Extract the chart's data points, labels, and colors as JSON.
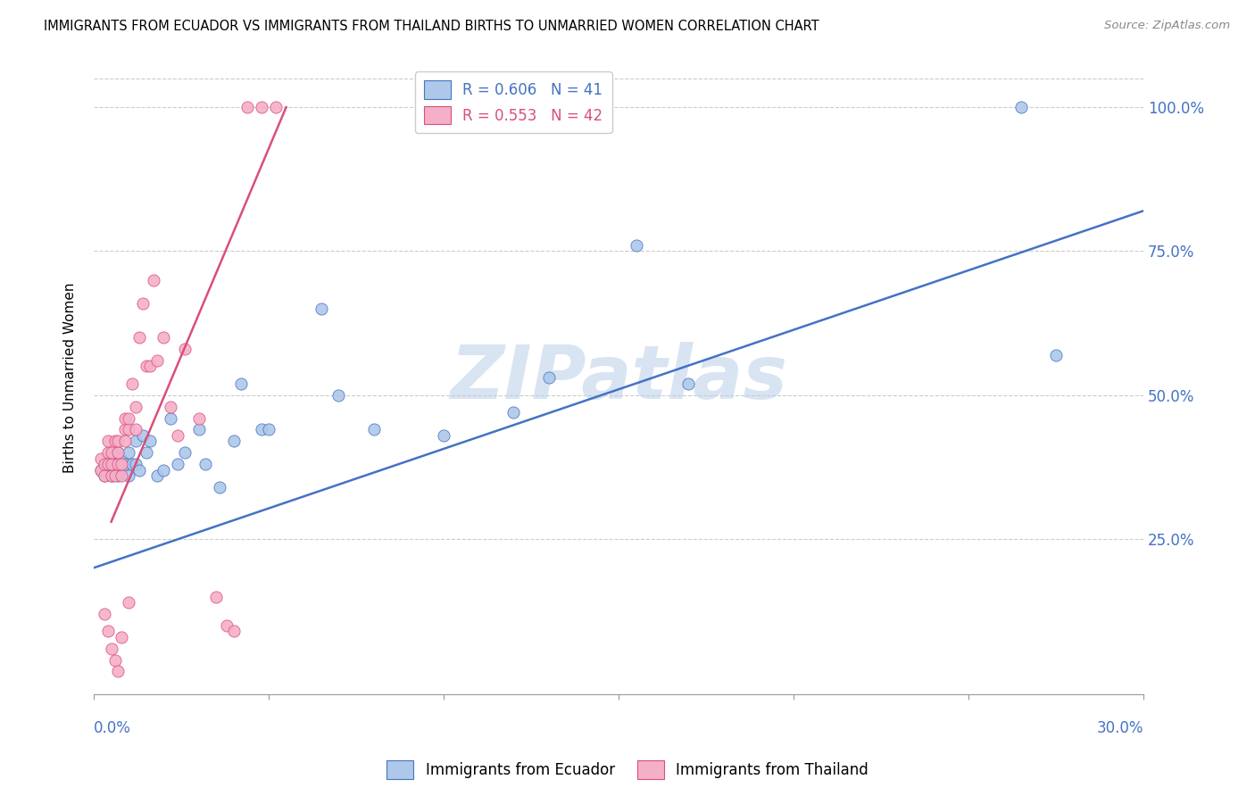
{
  "title": "IMMIGRANTS FROM ECUADOR VS IMMIGRANTS FROM THAILAND BIRTHS TO UNMARRIED WOMEN CORRELATION CHART",
  "source": "Source: ZipAtlas.com",
  "ylabel": "Births to Unmarried Women",
  "ytick_values": [
    0.25,
    0.5,
    0.75,
    1.0
  ],
  "ytick_labels": [
    "25.0%",
    "50.0%",
    "75.0%",
    "100.0%"
  ],
  "xlim": [
    0.0,
    0.3
  ],
  "ylim": [
    -0.02,
    1.08
  ],
  "watermark": "ZIPatlas",
  "legend1_r": "0.606",
  "legend1_n": "41",
  "legend2_r": "0.553",
  "legend2_n": "42",
  "color_ecuador": "#adc8e8",
  "color_thailand": "#f5afc8",
  "color_line_ecuador": "#4472c4",
  "color_line_thailand": "#d94f7a",
  "ecuador_trend_x": [
    0.0,
    0.3
  ],
  "ecuador_trend_y": [
    0.2,
    0.82
  ],
  "thailand_trend_x": [
    0.005,
    0.055
  ],
  "thailand_trend_y": [
    0.28,
    1.0
  ],
  "ecuador_x": [
    0.002,
    0.003,
    0.004,
    0.005,
    0.006,
    0.006,
    0.007,
    0.007,
    0.008,
    0.009,
    0.01,
    0.01,
    0.011,
    0.012,
    0.012,
    0.013,
    0.014,
    0.015,
    0.016,
    0.018,
    0.02,
    0.022,
    0.024,
    0.026,
    0.03,
    0.032,
    0.036,
    0.04,
    0.042,
    0.048,
    0.05,
    0.065,
    0.07,
    0.08,
    0.1,
    0.12,
    0.13,
    0.155,
    0.17,
    0.265,
    0.275
  ],
  "ecuador_y": [
    0.37,
    0.36,
    0.38,
    0.36,
    0.37,
    0.38,
    0.36,
    0.4,
    0.39,
    0.38,
    0.36,
    0.4,
    0.38,
    0.38,
    0.42,
    0.37,
    0.43,
    0.4,
    0.42,
    0.36,
    0.37,
    0.46,
    0.38,
    0.4,
    0.44,
    0.38,
    0.34,
    0.42,
    0.52,
    0.44,
    0.44,
    0.65,
    0.5,
    0.44,
    0.43,
    0.47,
    0.53,
    0.76,
    0.52,
    1.0,
    0.57
  ],
  "thailand_x": [
    0.002,
    0.002,
    0.003,
    0.003,
    0.004,
    0.004,
    0.004,
    0.005,
    0.005,
    0.005,
    0.006,
    0.006,
    0.007,
    0.007,
    0.007,
    0.008,
    0.008,
    0.009,
    0.009,
    0.009,
    0.01,
    0.01,
    0.011,
    0.012,
    0.012,
    0.013,
    0.014,
    0.015,
    0.016,
    0.017,
    0.018,
    0.02,
    0.022,
    0.024,
    0.026,
    0.03,
    0.035,
    0.038,
    0.04,
    0.044,
    0.048,
    0.052
  ],
  "thailand_y": [
    0.37,
    0.39,
    0.36,
    0.38,
    0.4,
    0.38,
    0.42,
    0.36,
    0.38,
    0.4,
    0.42,
    0.36,
    0.38,
    0.4,
    0.42,
    0.36,
    0.38,
    0.44,
    0.42,
    0.46,
    0.44,
    0.46,
    0.52,
    0.44,
    0.48,
    0.6,
    0.66,
    0.55,
    0.55,
    0.7,
    0.56,
    0.6,
    0.48,
    0.43,
    0.58,
    0.46,
    0.15,
    0.1,
    0.09,
    1.0,
    1.0,
    1.0
  ],
  "thailand_outlier_x": [
    0.003,
    0.004,
    0.005,
    0.006,
    0.007,
    0.008,
    0.01
  ],
  "thailand_outlier_y": [
    0.12,
    0.09,
    0.06,
    0.04,
    0.02,
    0.08,
    0.14
  ]
}
